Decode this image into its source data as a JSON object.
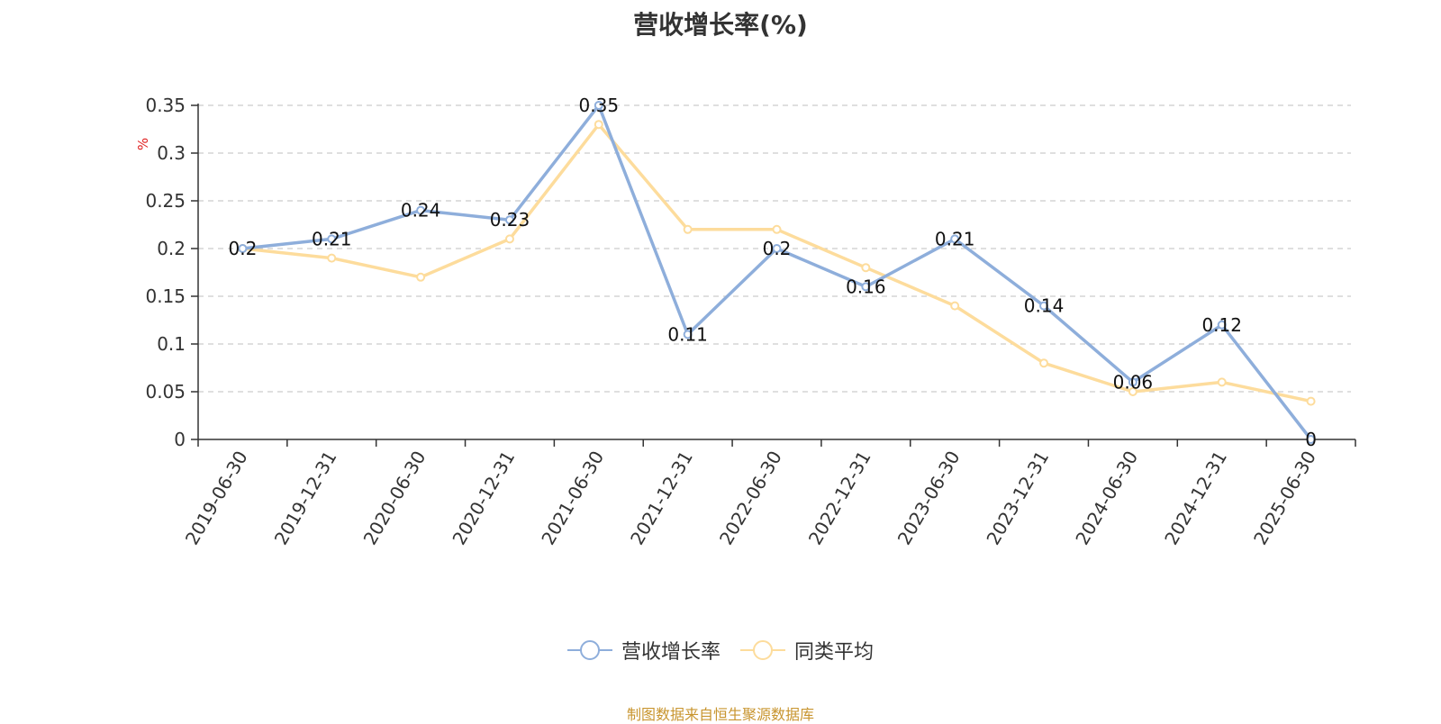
{
  "title": "营收增长率(%)",
  "source": "制图数据来自恒生聚源数据库",
  "colors": {
    "series_revenue": "#8eaedb",
    "series_average": "#fddc9c",
    "source_text": "#c8952f",
    "unit_text": "#e02020",
    "axis": "#333333",
    "grid": "#cccccc"
  },
  "chart_data": {
    "type": "line",
    "title": "营收增长率(%)",
    "ylabel": "%",
    "xlabel": "",
    "ylim": [
      0,
      0.35
    ],
    "yticks": [
      0,
      0.05,
      0.1,
      0.15,
      0.2,
      0.25,
      0.3,
      0.35
    ],
    "ytick_labels": [
      "0",
      "0.05",
      "0.1",
      "0.15",
      "0.2",
      "0.25",
      "0.3",
      "0.35"
    ],
    "grid": "horizontal-dashed",
    "legend_position": "bottom-center",
    "categories": [
      "2019-06-30",
      "2019-12-31",
      "2020-06-30",
      "2020-12-31",
      "2021-06-30",
      "2021-12-31",
      "2022-06-30",
      "2022-12-31",
      "2023-06-30",
      "2023-12-31",
      "2024-06-30",
      "2024-12-31",
      "2025-06-30"
    ],
    "series": [
      {
        "name": "营收增长率",
        "values": [
          0.2,
          0.21,
          0.24,
          0.23,
          0.35,
          0.11,
          0.2,
          0.16,
          0.21,
          0.14,
          0.06,
          0.12,
          0
        ],
        "labels": [
          "0.2",
          "0.21",
          "0.24",
          "0.23",
          "0.35",
          "0.11",
          "0.2",
          "0.16",
          "0.21",
          "0.14",
          "0.06",
          "0.12",
          "0"
        ],
        "show_labels": true
      },
      {
        "name": "同类平均",
        "values": [
          0.2,
          0.19,
          0.17,
          0.21,
          0.33,
          0.22,
          0.22,
          0.18,
          0.14,
          0.08,
          0.05,
          0.06,
          0.04
        ],
        "show_labels": false
      }
    ]
  }
}
